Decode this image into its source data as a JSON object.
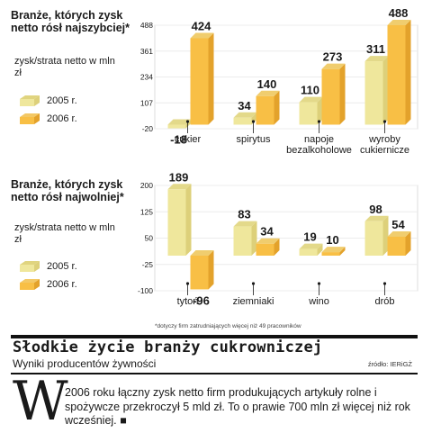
{
  "colors": {
    "y2005": "#efe79c",
    "y2005_dark": "#ddd07a",
    "y2006": "#f8bf45",
    "y2006_dark": "#e3a22b",
    "grid": "#ececec",
    "ink": "#1a1a1a"
  },
  "top_panel": {
    "title": "Branże, których zysk netto rósł najszybciej*",
    "unit": "zysk/strata netto w mln zł",
    "legend": [
      "2005 r.",
      "2006 r."
    ]
  },
  "bottom_panel": {
    "title": "Branże, których zysk netto rósł najwolniej*",
    "unit": "zysk/strata netto w mln zł",
    "legend": [
      "2005 r.",
      "2006 r."
    ]
  },
  "chart_data": [
    {
      "type": "bar",
      "categories": [
        [
          "cukier"
        ],
        [
          "spirytus"
        ],
        [
          "napoje",
          "bezalkoholowe"
        ],
        [
          "wyroby",
          "cukiernicze"
        ]
      ],
      "series": [
        {
          "name": "2005 r.",
          "values": [
            -18,
            34,
            110,
            311
          ]
        },
        {
          "name": "2006 r.",
          "values": [
            424,
            140,
            273,
            488
          ]
        }
      ],
      "ylim": [
        -20,
        488
      ],
      "yticks": [
        -20,
        107,
        234,
        361,
        488
      ],
      "grid": true
    },
    {
      "type": "bar",
      "categories": [
        [
          "tytoń"
        ],
        [
          "ziemniaki"
        ],
        [
          "wino"
        ],
        [
          "drób"
        ]
      ],
      "series": [
        {
          "name": "2005 r.",
          "values": [
            189,
            83,
            19,
            98
          ]
        },
        {
          "name": "2006 r.",
          "values": [
            -96,
            34,
            10,
            54
          ]
        }
      ],
      "ylim": [
        -100,
        200
      ],
      "yticks": [
        -100,
        -25,
        50,
        125,
        200
      ],
      "grid": true
    }
  ],
  "footnote": "*dotyczy firm zatrudniających więcej niż 49 pracowników",
  "headline": "Słodkie życie branży cukrowniczej",
  "subheadline": "Wyniki producentów żywności",
  "source": "źródło: IERiGŻ",
  "article": {
    "dropcap": "W",
    "text": "2006 roku łączny zysk netto firm produkujących artykuły rolne i spożywcze przekroczył 5 mld zł. To o prawie 700 mln zł więcej niż rok wcześniej. ■"
  }
}
